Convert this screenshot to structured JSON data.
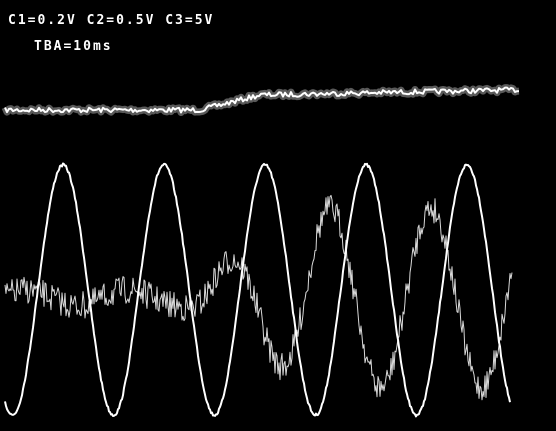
{
  "header": {
    "channels": "C1=0.2V C2=0.5V C3=5V",
    "timebase": "TBA=10ms"
  }
}
